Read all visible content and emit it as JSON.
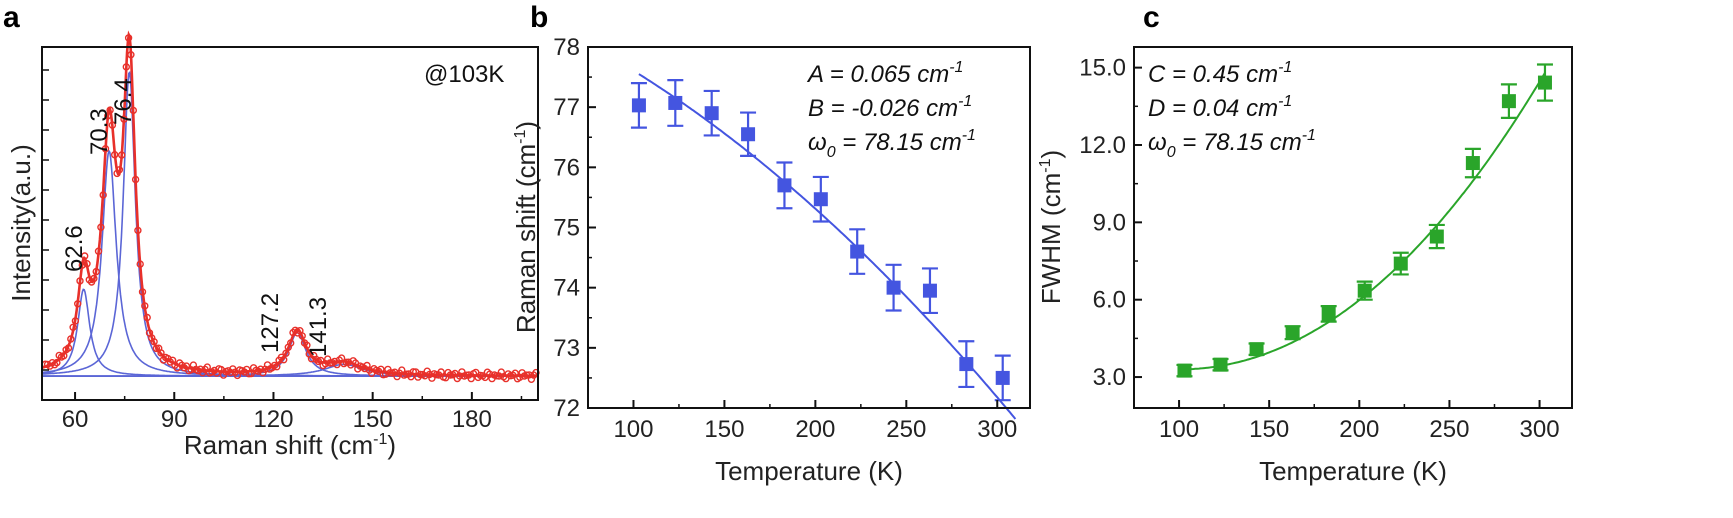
{
  "chart_data": [
    {
      "type": "line",
      "panel": "a",
      "xlabel": "Raman shift (cm⁻¹)",
      "ylabel": "Intensity(a.u.)",
      "xlim": [
        50,
        200
      ],
      "xticks": [
        60,
        90,
        120,
        150,
        180
      ],
      "corner_label": "@103K",
      "colors": {
        "data": "#e8302a",
        "fit": "#e8302a",
        "components": "#5b66d6"
      },
      "peak_labels": [
        "62.6",
        "70.3",
        "76.4",
        "127.2",
        "141.3"
      ],
      "peak_positions": [
        62.6,
        70.3,
        76.4,
        127.2,
        141.3
      ],
      "series": [
        {
          "name": "components",
          "peaks": [
            {
              "center": 62.6,
              "height": 0.22,
              "width": 2.2
            },
            {
              "center": 70.3,
              "height": 0.57,
              "width": 2.6
            },
            {
              "center": 76.4,
              "height": 0.77,
              "width": 2.2
            },
            {
              "center": 127.2,
              "height": 0.11,
              "width": 3.2
            },
            {
              "center": 141.3,
              "height": 0.03,
              "width": 7
            }
          ],
          "baseline": 0.03
        }
      ]
    },
    {
      "type": "scatter",
      "panel": "b",
      "xlabel": "Temperature (K)",
      "ylabel": "Raman shift (cm⁻¹)",
      "xlim": [
        75,
        318
      ],
      "ylim": [
        72,
        78
      ],
      "xticks": [
        100,
        150,
        200,
        250,
        300
      ],
      "yticks": [
        72,
        73,
        74,
        75,
        76,
        77,
        78
      ],
      "color": "#4455e0",
      "x": [
        103,
        123,
        143,
        163,
        183,
        203,
        223,
        243,
        263,
        283,
        303
      ],
      "values": [
        77.03,
        77.07,
        76.9,
        76.55,
        75.7,
        75.47,
        74.6,
        74.0,
        73.95,
        72.73,
        72.5
      ],
      "errors": [
        0.37,
        0.38,
        0.37,
        0.36,
        0.38,
        0.37,
        0.37,
        0.38,
        0.37,
        0.38,
        0.37
      ],
      "fit": {
        "A": 0.065,
        "B": -0.026,
        "w0": 78.15,
        "x_range": [
          103,
          310
        ]
      },
      "equations": {
        "line1": "A = 0.065 cm",
        "line1_sup": "-1",
        "line2": "B = -0.026 cm",
        "line2_sup": "-1",
        "line3": "ω",
        "line3_sub": "0",
        "line3_rest": " = 78.15 cm",
        "line3_sup": "-1"
      }
    },
    {
      "type": "scatter",
      "panel": "c",
      "xlabel": "Temperature (K)",
      "ylabel": "FWHM (cm⁻¹)",
      "xlim": [
        75,
        318
      ],
      "ylim": [
        1.8,
        15.8
      ],
      "xticks": [
        100,
        150,
        200,
        250,
        300
      ],
      "yticks": [
        3.0,
        6.0,
        9.0,
        12.0,
        15.0
      ],
      "ytick_labels": [
        "3.0",
        "6.0",
        "9.0",
        "12.0",
        "15.0"
      ],
      "color": "#2aa52a",
      "x": [
        103,
        123,
        143,
        163,
        183,
        203,
        223,
        243,
        263,
        283,
        303
      ],
      "values": [
        3.25,
        3.48,
        4.08,
        4.72,
        5.45,
        6.35,
        7.4,
        8.45,
        11.3,
        13.7,
        14.42
      ],
      "errors": [
        0.22,
        0.22,
        0.22,
        0.25,
        0.3,
        0.35,
        0.42,
        0.45,
        0.55,
        0.65,
        0.7
      ],
      "fit": {
        "C": 0.45,
        "D": 0.04,
        "w0": 78.15,
        "x_range": [
          103,
          303
        ]
      },
      "equations": {
        "line1": "C = 0.45 cm",
        "line1_sup": "-1",
        "line2": "D = 0.04 cm",
        "line2_sup": "-1",
        "line3": "ω",
        "line3_sub": "0",
        "line3_rest": " = 78.15 cm",
        "line3_sup": "-1"
      }
    }
  ],
  "panels": {
    "a": "a",
    "b": "b",
    "c": "c"
  }
}
